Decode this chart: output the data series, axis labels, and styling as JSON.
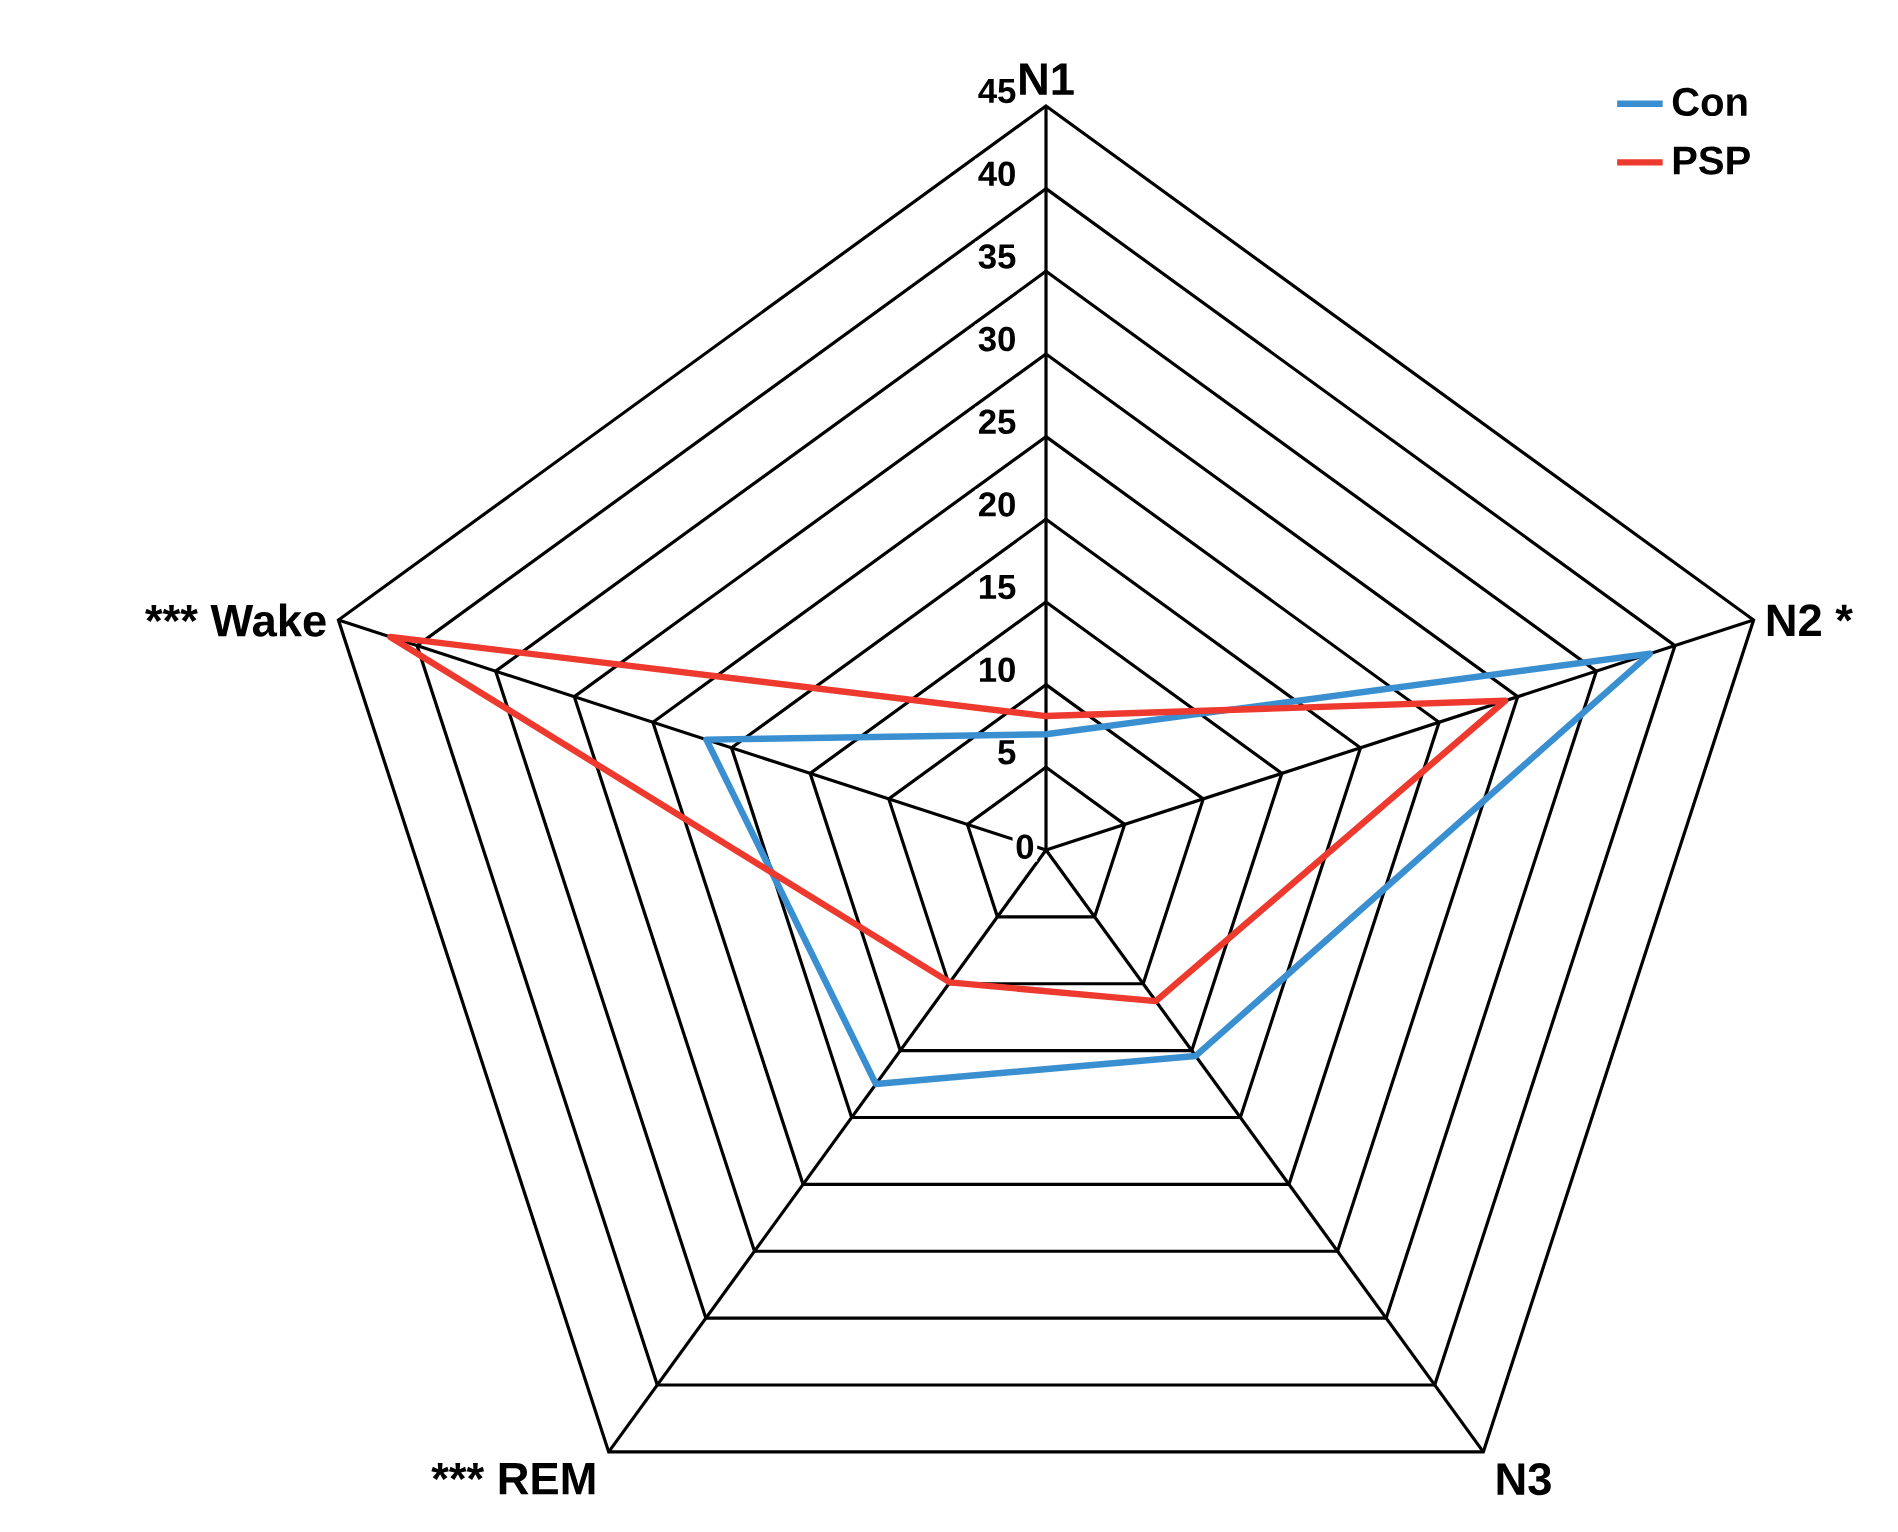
{
  "chart_data": {
    "type": "radar",
    "categories": [
      "N1",
      "N2 *",
      "N3",
      "*** REM",
      "*** Wake"
    ],
    "ylim": [
      0,
      45
    ],
    "yticks": [
      0,
      5,
      10,
      15,
      20,
      25,
      30,
      35,
      40,
      45
    ],
    "grid": true,
    "legend": "top right",
    "series": [
      {
        "name": "Con",
        "color": "#3a8fd1",
        "values": [
          7,
          38.4,
          15.4,
          17.5,
          21.6
        ]
      },
      {
        "name": "PSP",
        "color": "#ee3a2e",
        "values": [
          8.1,
          29.2,
          11.3,
          9.9,
          41.7
        ]
      }
    ]
  }
}
